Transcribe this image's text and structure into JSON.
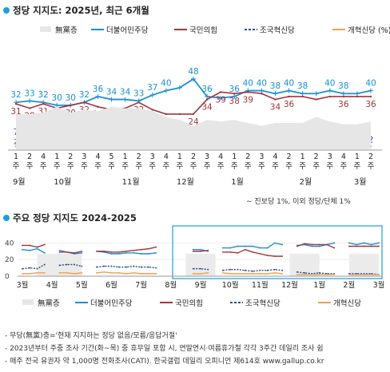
{
  "sections": {
    "main_title": "정당 지지도: 2025년, 최근 6개월",
    "long_title": "주요 정당 지지도 2024-2025"
  },
  "legend": [
    {
      "key": "nopref",
      "label": "無黨층",
      "color": "#e6e6e6"
    },
    {
      "key": "dem",
      "label": "더불어민주당",
      "color": "#1a8fd6"
    },
    {
      "key": "ppp",
      "label": "국민의힘",
      "color": "#a0363a"
    },
    {
      "key": "rk",
      "label": "조국혁신당",
      "color": "#2a4d8f"
    },
    {
      "key": "rp",
      "label": "개혁신당 (%)",
      "color": "#f0a050"
    }
  ],
  "legend2": [
    {
      "key": "nopref",
      "label": "無黨층"
    },
    {
      "key": "dem",
      "label": "더불어민주당"
    },
    {
      "key": "ppp",
      "label": "국민의힘"
    },
    {
      "key": "rk",
      "label": "조국혁신당"
    },
    {
      "key": "rp",
      "label": "개혁신당"
    }
  ],
  "chart_data": [
    {
      "type": "line",
      "x": [
        "1주",
        "2주",
        "4주",
        "1주",
        "2주",
        "3주",
        "4주",
        "5주",
        "1주",
        "2주",
        "3주",
        "4주",
        "1주",
        "2주",
        "3주",
        "4주",
        "1주",
        "2주",
        "3주",
        "4주",
        "2주",
        "1주",
        "2주",
        "3주",
        "4주",
        "1주",
        "2주"
      ],
      "months": [
        {
          "label": "9월",
          "start": 0
        },
        {
          "label": "10월",
          "start": 3
        },
        {
          "label": "11월",
          "start": 8
        },
        {
          "label": "12월",
          "start": 12
        },
        {
          "label": "1월",
          "start": 16
        },
        {
          "label": "2월",
          "start": 21
        },
        {
          "label": "3월",
          "start": 25
        }
      ],
      "series": [
        {
          "name": "더불어민주당",
          "values": [
            32,
            33,
            32,
            30,
            30,
            32,
            36,
            34,
            34,
            33,
            37,
            40,
            42,
            48,
            36,
            35,
            36,
            40,
            40,
            38,
            40,
            38,
            38,
            40,
            38,
            38,
            40
          ],
          "labels": [
            32,
            33,
            32,
            30,
            30,
            32,
            36,
            34,
            34,
            33,
            37,
            40,
            null,
            48,
            36,
            null,
            36,
            40,
            40,
            38,
            40,
            38,
            null,
            40,
            38,
            null,
            40
          ]
        },
        {
          "name": "국민의힘",
          "values": [
            31,
            28,
            31,
            28,
            30,
            32,
            29,
            27,
            28,
            32,
            27,
            24,
            24,
            24,
            34,
            39,
            38,
            39,
            38,
            34,
            36,
            36,
            34,
            36,
            36,
            36,
            36
          ],
          "labels": [
            31,
            28,
            31,
            28,
            30,
            32,
            29,
            27,
            28,
            32,
            27,
            24,
            null,
            24,
            34,
            39,
            38,
            39,
            null,
            34,
            36,
            null,
            null,
            null,
            36,
            null,
            36
          ]
        },
        {
          "name": "조국혁신당",
          "values": [
            7,
            8,
            8,
            8,
            6,
            7,
            7,
            7,
            5,
            7,
            8,
            4,
            null,
            null,
            5,
            4,
            3,
            4,
            4,
            3,
            3,
            3,
            3,
            3,
            3,
            3,
            2
          ],
          "labels": [
            7,
            8,
            8,
            8,
            6,
            7,
            7,
            7,
            5,
            7,
            8,
            4,
            null,
            null,
            5,
            4,
            3,
            null,
            4,
            3,
            3,
            null,
            null,
            3,
            3,
            null,
            2
          ]
        },
        {
          "name": "개혁신당",
          "values": [
            2,
            4,
            3,
            4,
            3,
            3,
            3,
            3,
            3,
            2,
            3,
            4,
            null,
            null,
            2,
            2,
            2,
            2,
            2,
            2,
            2,
            2,
            3,
            2,
            2,
            2,
            2
          ],
          "labels": [
            2,
            4,
            3,
            4,
            3,
            3,
            3,
            3,
            3,
            2,
            3,
            4,
            null,
            null,
            2,
            2,
            2,
            2,
            null,
            null,
            null,
            null,
            null,
            null,
            null,
            null,
            null
          ]
        },
        {
          "name": "無黨층",
          "values": [
            24,
            24,
            25,
            29,
            25,
            27,
            26,
            29,
            28,
            28,
            26,
            22,
            20,
            16,
            20,
            19,
            20,
            18,
            16,
            18,
            18,
            18,
            22,
            19,
            17,
            17,
            19
          ]
        }
      ],
      "ylim": [
        0,
        55
      ]
    },
    {
      "type": "line",
      "x_labels": [
        "3월",
        "4월",
        "5월",
        "6월",
        "7월",
        "8월",
        "9월",
        "10월",
        "11월",
        "12월",
        "1월",
        "2월",
        "3월"
      ],
      "y_ticks": [
        0,
        20,
        40
      ],
      "series": [
        {
          "name": "더불어민주당",
          "values": [
            32,
            31,
            33,
            28,
            null,
            31,
            29,
            27,
            28,
            null,
            30,
            29,
            27,
            27,
            28,
            28,
            27,
            27,
            28,
            null,
            null,
            null,
            null,
            32,
            32,
            30,
            null,
            34,
            34,
            36,
            36,
            36,
            34,
            34,
            40,
            38,
            null,
            37,
            38,
            36,
            36,
            38,
            40,
            null,
            40,
            38,
            40,
            38,
            40
          ]
        },
        {
          "name": "국민의힘",
          "values": [
            37,
            37,
            35,
            38,
            null,
            29,
            29,
            28,
            30,
            null,
            30,
            30,
            29,
            29,
            30,
            31,
            32,
            33,
            35,
            null,
            null,
            null,
            null,
            30,
            30,
            31,
            null,
            29,
            29,
            28,
            32,
            29,
            27,
            25,
            24,
            24,
            null,
            36,
            39,
            38,
            38,
            38,
            34,
            null,
            36,
            36,
            36,
            36,
            36
          ]
        },
        {
          "name": "조국혁신당",
          "values": [
            9,
            10,
            9,
            14,
            null,
            13,
            14,
            14,
            12,
            null,
            11,
            12,
            12,
            11,
            11,
            12,
            11,
            11,
            10,
            null,
            null,
            null,
            null,
            9,
            9,
            8,
            null,
            7,
            8,
            8,
            7,
            6,
            7,
            7,
            8,
            7,
            null,
            5,
            4,
            3,
            4,
            3,
            3,
            null,
            3,
            3,
            3,
            3,
            2
          ]
        },
        {
          "name": "개혁신당",
          "values": [
            3,
            3,
            4,
            4,
            null,
            4,
            4,
            3,
            4,
            null,
            4,
            5,
            4,
            4,
            3,
            4,
            3,
            3,
            3,
            null,
            null,
            null,
            null,
            3,
            3,
            4,
            null,
            4,
            3,
            3,
            3,
            3,
            3,
            3,
            4,
            3,
            null,
            2,
            2,
            2,
            2,
            2,
            2,
            null,
            2,
            2,
            2,
            2,
            2
          ]
        }
      ],
      "ylim": [
        0,
        48
      ]
    }
  ],
  "notes": [
    "∼ 진보당 1%, 이외 정당/단체 1%",
    "- 무당(無黨)층='현재 지지하는 정당 없음/모름/응답거절'",
    "- 2023년부터 주중 조사 기간(화~목) 중 휴무일 포함 시, 연말연시·여름휴가철 각각 3주간 데일리 조사 쉼",
    "- 매주 전국 유권자 약 1,000명 전화조사(CATI). 한국갤럽 데일리 오피니언 제614호 www.gallup.co.kr"
  ]
}
